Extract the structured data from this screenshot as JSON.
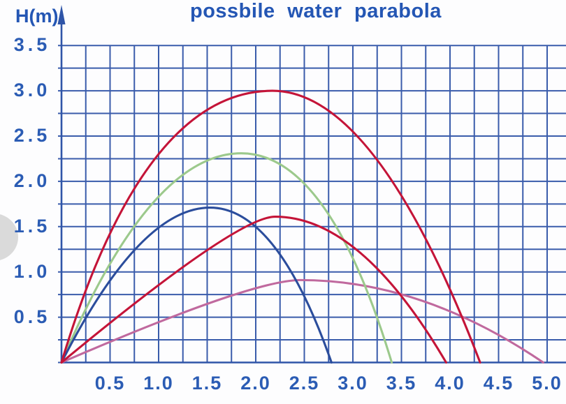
{
  "title": "possbile water parabola",
  "y_axis_label": "H(m)",
  "colors": {
    "grid_blue": "#3a5cab",
    "axis_blue": "#2f55a8",
    "text_blue": "#2456b4",
    "background": "#fdfdfe",
    "artifact_gray": "#dadada"
  },
  "chart_data": {
    "type": "line",
    "title": "possbile water parabola",
    "xlabel": "",
    "ylabel": "H(m)",
    "x_ticks": [
      "0.5",
      "1.0",
      "1.5",
      "2.0",
      "2.5",
      "3.0",
      "3.5",
      "4.0",
      "4.5",
      "5.0"
    ],
    "y_ticks": [
      "3.5",
      "3.0",
      "2.5",
      "2.0",
      "1.5",
      "1.0",
      "0.5"
    ],
    "xlim": [
      0,
      5.2
    ],
    "ylim": [
      0,
      3.5
    ],
    "grid": "on",
    "grid_step": 0.25,
    "legend": "none",
    "series": [
      {
        "name": "pink-flat-parabola",
        "color": "#c0699e",
        "start": [
          0,
          0
        ],
        "peak": [
          2.46,
          0.91
        ],
        "end": [
          4.96,
          0
        ],
        "ctrl_left_x": 1.96,
        "ctrl_right_x": 3.71
      },
      {
        "name": "green-parabola",
        "color": "#9cc98c",
        "start": [
          0,
          0
        ],
        "peak": [
          1.85,
          2.31
        ],
        "end": [
          3.4,
          0
        ],
        "ctrl_left_x": 0.91,
        "ctrl_right_x": 2.75
      },
      {
        "name": "blue-parabola",
        "color": "#2b4d9c",
        "start": [
          0,
          0
        ],
        "peak": [
          1.53,
          1.71
        ],
        "end": [
          2.78,
          0
        ],
        "ctrl_left_x": 0.81,
        "ctrl_right_x": 2.22
      },
      {
        "name": "low-red-parabola",
        "color": "#c41438",
        "start": [
          0,
          0
        ],
        "peak": [
          2.2,
          1.61
        ],
        "end": [
          3.96,
          0
        ],
        "ctrl_left_x": 1.81,
        "ctrl_right_x": 3.08
      },
      {
        "name": "tall-red-parabola",
        "color": "#c41438",
        "start": [
          0,
          0
        ],
        "peak": [
          2.17,
          3.0
        ],
        "end": [
          4.31,
          0
        ],
        "ctrl_left_x": 0.84,
        "ctrl_right_x": 3.24
      }
    ]
  }
}
